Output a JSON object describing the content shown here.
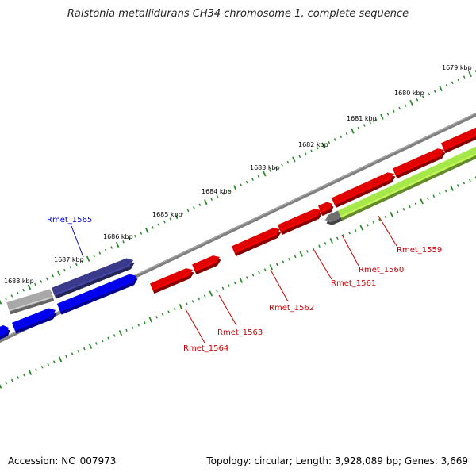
{
  "title": "Ralstonia metallidurans CH34 chromosome 1, complete sequence",
  "accession": "Accession: NC_007973",
  "summary": "Topology: circular; Length: 3,928,089 bp; Genes: 3,669",
  "colors": {
    "backbone": "#808080",
    "tick": "#2a8a2a",
    "red_gene": "#e00000",
    "blue_gene": "#0000ee",
    "navy_gene": "#3a3a8c",
    "gray_gene": "#a8a8a8",
    "lime_gene": "#a6e84a",
    "red_label": "#cc0000",
    "blue_label": "#0000cc"
  },
  "scale_labels": [
    "1679 kbp",
    "1680 kbp",
    "1681 kbp",
    "1682 kbp",
    "1683 kbp",
    "1684 kbp",
    "1685 kbp",
    "1686 kbp",
    "1687 kbp",
    "1688 kbp"
  ],
  "gene_labels": [
    {
      "name": "Rmet_1565",
      "color": "blue"
    },
    {
      "name": "Rmet_1559",
      "color": "red"
    },
    {
      "name": "Rmet_1560",
      "color": "red"
    },
    {
      "name": "Rmet_1561",
      "color": "red"
    },
    {
      "name": "Rmet_1562",
      "color": "red"
    },
    {
      "name": "Rmet_1563",
      "color": "red"
    },
    {
      "name": "Rmet_1564",
      "color": "red"
    }
  ]
}
